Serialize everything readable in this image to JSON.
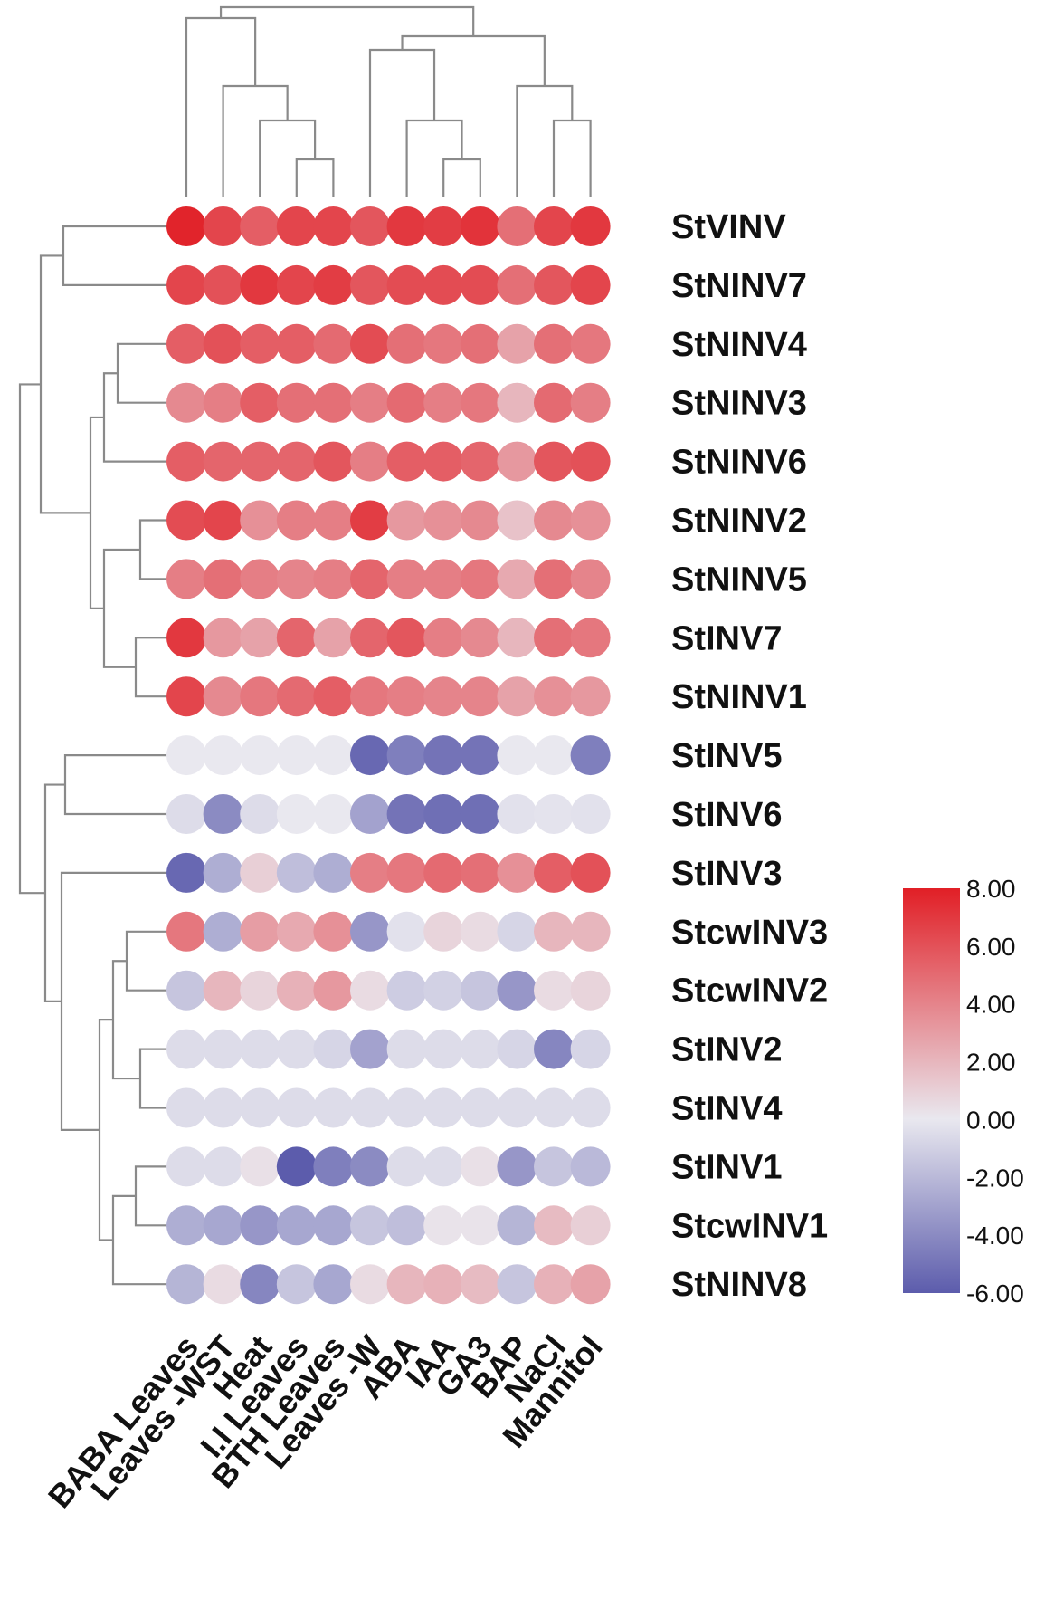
{
  "chart_data": {
    "type": "heatmap",
    "columns": [
      "BABA Leaves",
      "Leaves -WST",
      "Heat",
      "I.I Leaves",
      "BTH Leaves",
      "Leaves -W",
      "ABA",
      "IAA",
      "GA3",
      "BAP",
      "NaCl",
      "Mannitol"
    ],
    "rows": [
      "StVINV",
      "StNINV7",
      "StNINV4",
      "StNINV3",
      "StNINV6",
      "StNINV2",
      "StNINV5",
      "StINV7",
      "StNINV1",
      "StINV5",
      "StINV6",
      "StINV3",
      "StcwINV3",
      "StcwINV2",
      "StINV2",
      "StINV4",
      "StINV1",
      "StcwINV1",
      "StNINV8"
    ],
    "values": [
      [
        7.8,
        6.5,
        5.5,
        6.5,
        6.5,
        5.8,
        7.0,
        6.8,
        7.2,
        4.8,
        6.5,
        7.0
      ],
      [
        6.5,
        6.0,
        7.0,
        6.5,
        6.8,
        5.8,
        6.2,
        6.2,
        6.2,
        4.8,
        5.8,
        6.5
      ],
      [
        5.5,
        6.0,
        5.5,
        5.5,
        5.0,
        6.2,
        4.8,
        4.5,
        4.8,
        2.8,
        4.8,
        4.5
      ],
      [
        3.8,
        4.2,
        5.5,
        4.8,
        4.8,
        4.2,
        5.0,
        4.2,
        4.5,
        2.0,
        5.0,
        4.2
      ],
      [
        5.5,
        5.2,
        5.2,
        5.2,
        5.8,
        4.2,
        5.5,
        5.5,
        5.2,
        3.2,
        5.8,
        6.0
      ],
      [
        6.2,
        6.5,
        3.5,
        4.2,
        4.2,
        6.8,
        3.2,
        3.5,
        3.8,
        1.5,
        3.8,
        3.5
      ],
      [
        4.2,
        4.8,
        4.2,
        4.0,
        4.2,
        5.2,
        4.2,
        4.2,
        4.5,
        2.5,
        4.8,
        4.0
      ],
      [
        7.0,
        3.2,
        2.8,
        5.2,
        2.8,
        5.2,
        5.8,
        4.2,
        3.8,
        2.0,
        4.8,
        4.5
      ],
      [
        6.5,
        3.8,
        4.5,
        5.0,
        5.5,
        4.5,
        4.2,
        4.0,
        4.0,
        2.8,
        3.5,
        3.2
      ],
      [
        0.0,
        0.0,
        0.0,
        0.0,
        0.0,
        -5.5,
        -4.5,
        -5.0,
        -5.0,
        0.0,
        0.0,
        -4.5
      ],
      [
        -0.5,
        -4.0,
        -0.5,
        0.0,
        0.0,
        -3.0,
        -5.0,
        -5.2,
        -5.2,
        -0.3,
        -0.2,
        -0.3
      ],
      [
        -5.5,
        -2.5,
        1.0,
        -1.8,
        -2.5,
        4.2,
        4.5,
        5.0,
        4.8,
        3.5,
        5.5,
        6.0
      ],
      [
        4.5,
        -2.5,
        3.0,
        2.5,
        3.5,
        -3.5,
        -0.3,
        0.8,
        0.5,
        -0.8,
        2.0,
        2.0
      ],
      [
        -1.5,
        2.0,
        0.8,
        2.2,
        3.2,
        0.5,
        -1.2,
        -1.0,
        -1.5,
        -3.5,
        0.5,
        0.8
      ],
      [
        -0.5,
        -0.5,
        -0.5,
        -0.5,
        -0.8,
        -3.0,
        -0.5,
        -0.5,
        -0.5,
        -0.8,
        -4.2,
        -0.8
      ],
      [
        -0.5,
        -0.5,
        -0.5,
        -0.5,
        -0.5,
        -0.5,
        -0.5,
        -0.5,
        -0.5,
        -0.5,
        -0.5,
        -0.5
      ],
      [
        -0.5,
        -0.5,
        0.3,
        -6.0,
        -4.5,
        -4.0,
        -0.5,
        -0.5,
        0.3,
        -3.5,
        -1.5,
        -2.0
      ],
      [
        -2.5,
        -2.8,
        -3.5,
        -2.8,
        -2.8,
        -1.5,
        -1.8,
        0.2,
        0.2,
        -2.2,
        1.8,
        1.0
      ],
      [
        -2.2,
        0.5,
        -4.2,
        -1.5,
        -2.8,
        0.5,
        2.0,
        2.2,
        1.8,
        -1.5,
        2.2,
        2.8
      ]
    ],
    "colorbar": {
      "ticks": [
        "8.00",
        "6.00",
        "4.00",
        "2.00",
        "0.00",
        "-2.00",
        "-4.00",
        "-6.00"
      ],
      "min": -6,
      "max": 8,
      "colors": {
        "high": "#e11f26",
        "mid": "#e9e8ef",
        "low": "#5c5cac"
      }
    },
    "xlabel": "",
    "ylabel": ""
  }
}
